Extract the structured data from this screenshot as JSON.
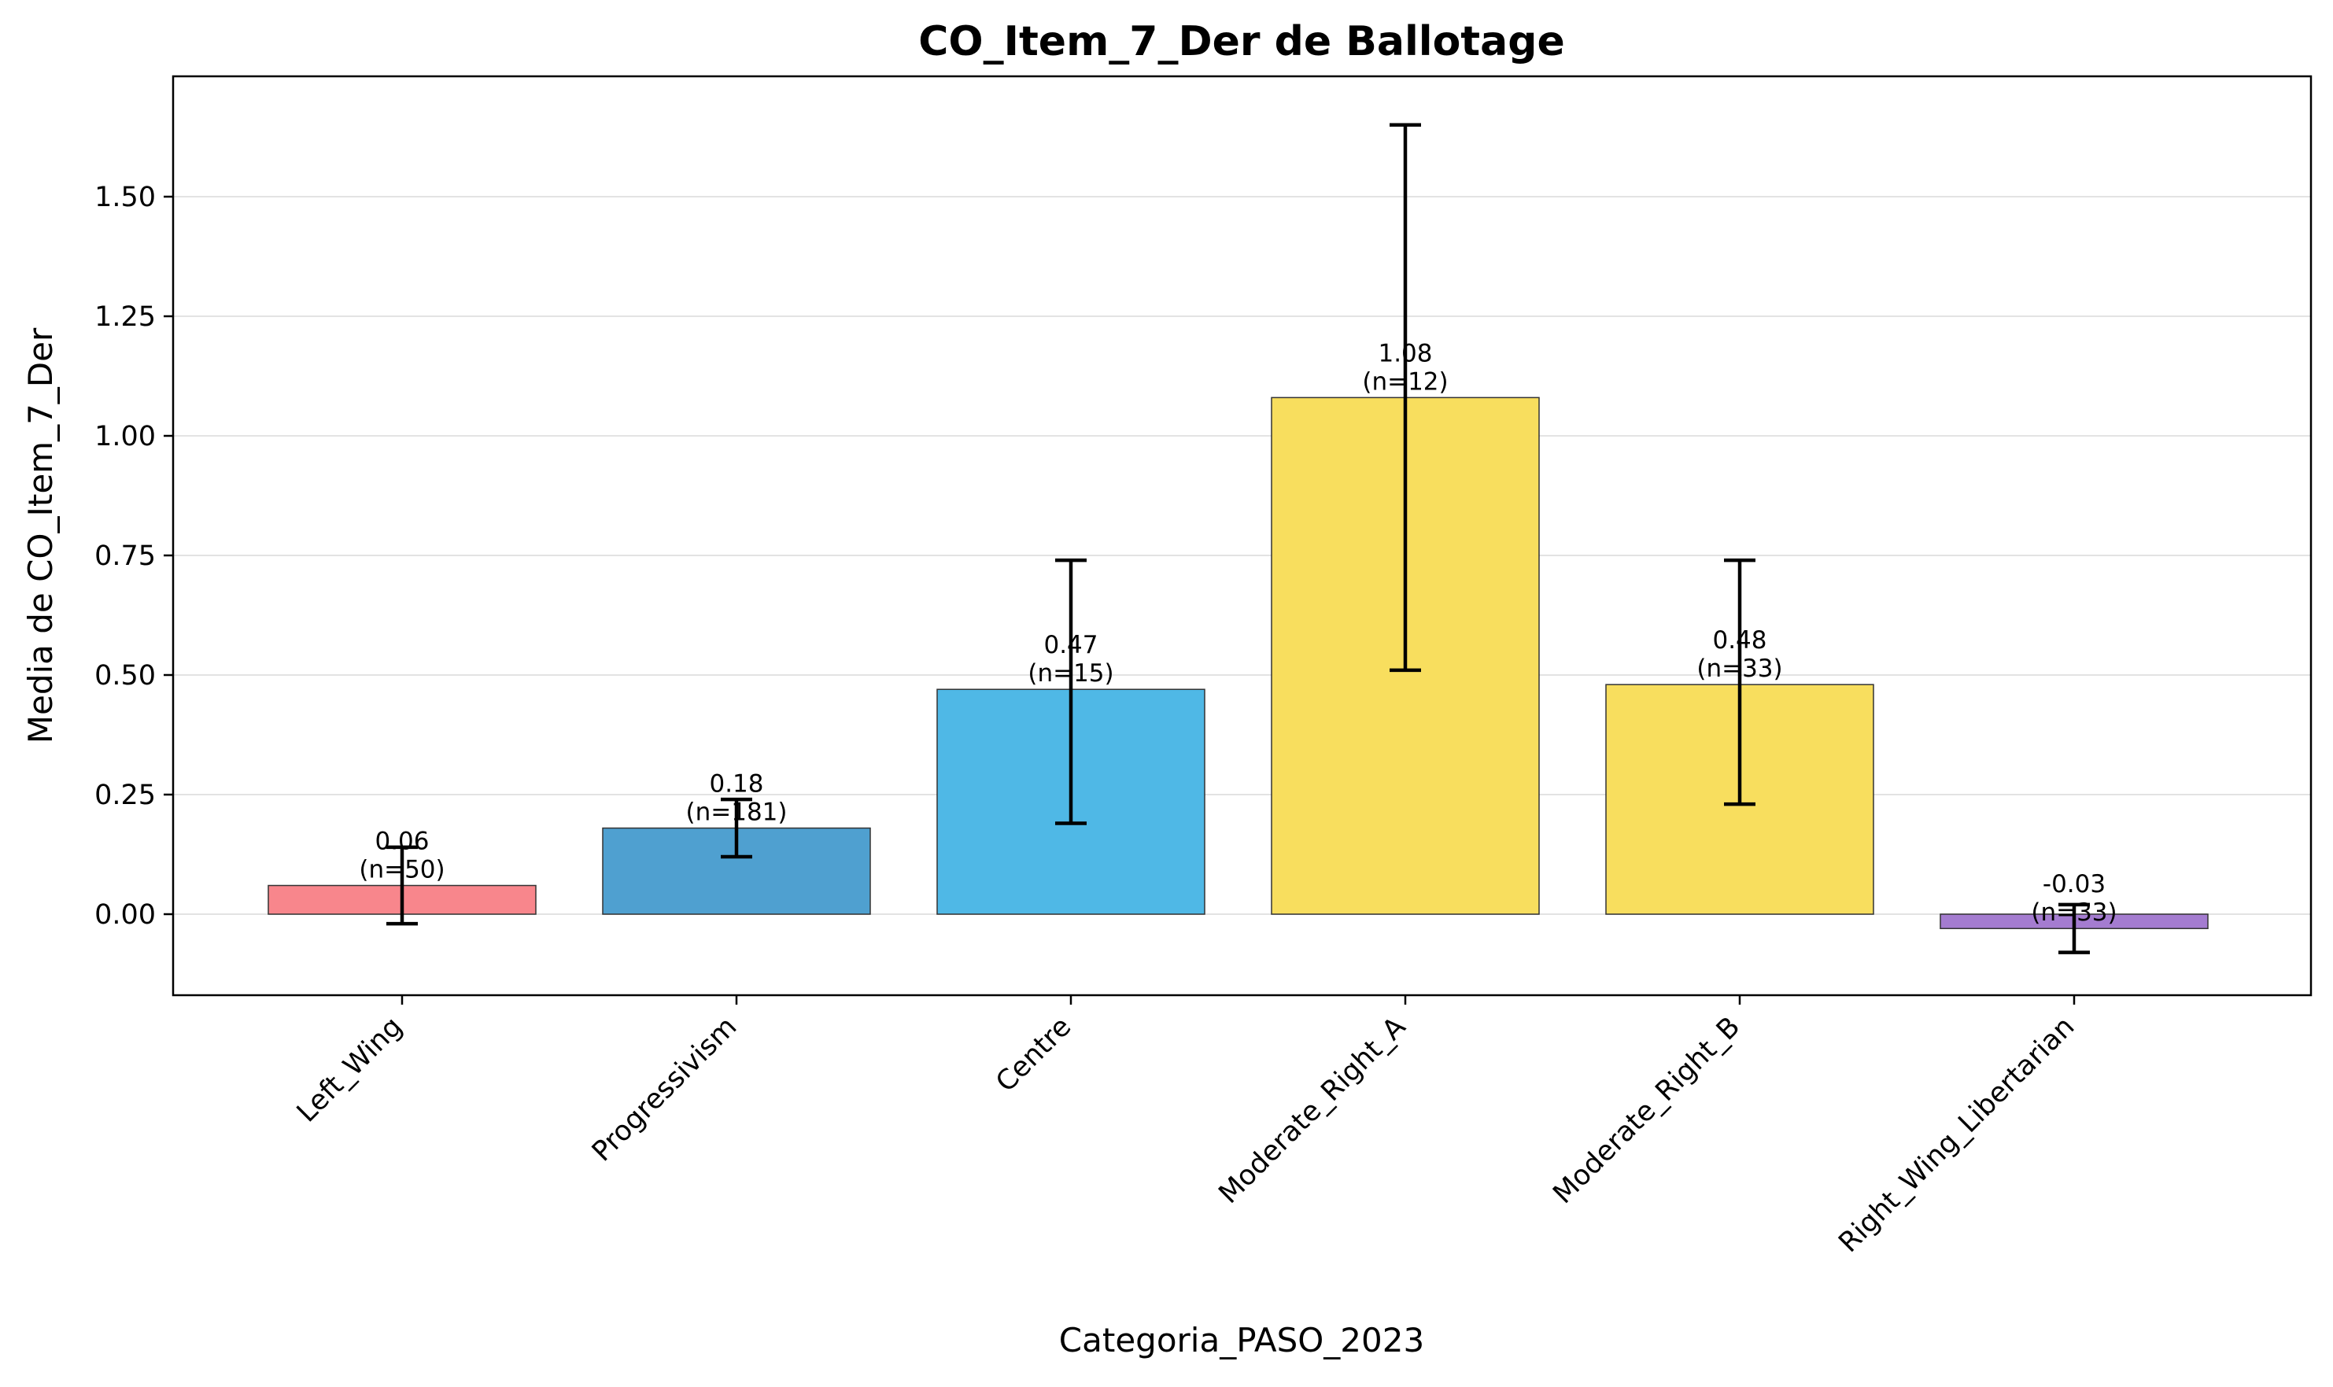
{
  "chart_data": {
    "type": "bar",
    "title": "CO_Item_7_Der de Ballotage",
    "xlabel": "Categoria_PASO_2023",
    "ylabel": "Media de CO_Item_7_Der",
    "ylim": [
      -0.17,
      1.72
    ],
    "yticks": [
      0.0,
      0.25,
      0.5,
      0.75,
      1.0,
      1.25,
      1.5
    ],
    "ytick_labels": [
      "0.00",
      "0.25",
      "0.50",
      "0.75",
      "1.00",
      "1.25",
      "1.50"
    ],
    "grid": "horizontal",
    "categories": [
      "Left_Wing",
      "Progressivism",
      "Centre",
      "Moderate_Right_A",
      "Moderate_Right_B",
      "Right_Wing_Libertarian"
    ],
    "values": [
      0.06,
      0.18,
      0.47,
      1.08,
      0.48,
      -0.03
    ],
    "error_low": [
      -0.02,
      0.12,
      0.19,
      0.51,
      0.23,
      -0.08
    ],
    "error_high": [
      0.14,
      0.24,
      0.74,
      1.65,
      0.74,
      0.02
    ],
    "value_labels": [
      "0.06",
      "0.18",
      "0.47",
      "1.08",
      "0.48",
      "-0.03"
    ],
    "n_labels": [
      "(n=50)",
      "(n=181)",
      "(n=15)",
      "(n=12)",
      "(n=33)",
      "(n=33)"
    ],
    "colors": [
      "#f8868c",
      "#4fa0d0",
      "#4fb8e6",
      "#f8de5e",
      "#f8de5e",
      "#a47cd0"
    ]
  }
}
